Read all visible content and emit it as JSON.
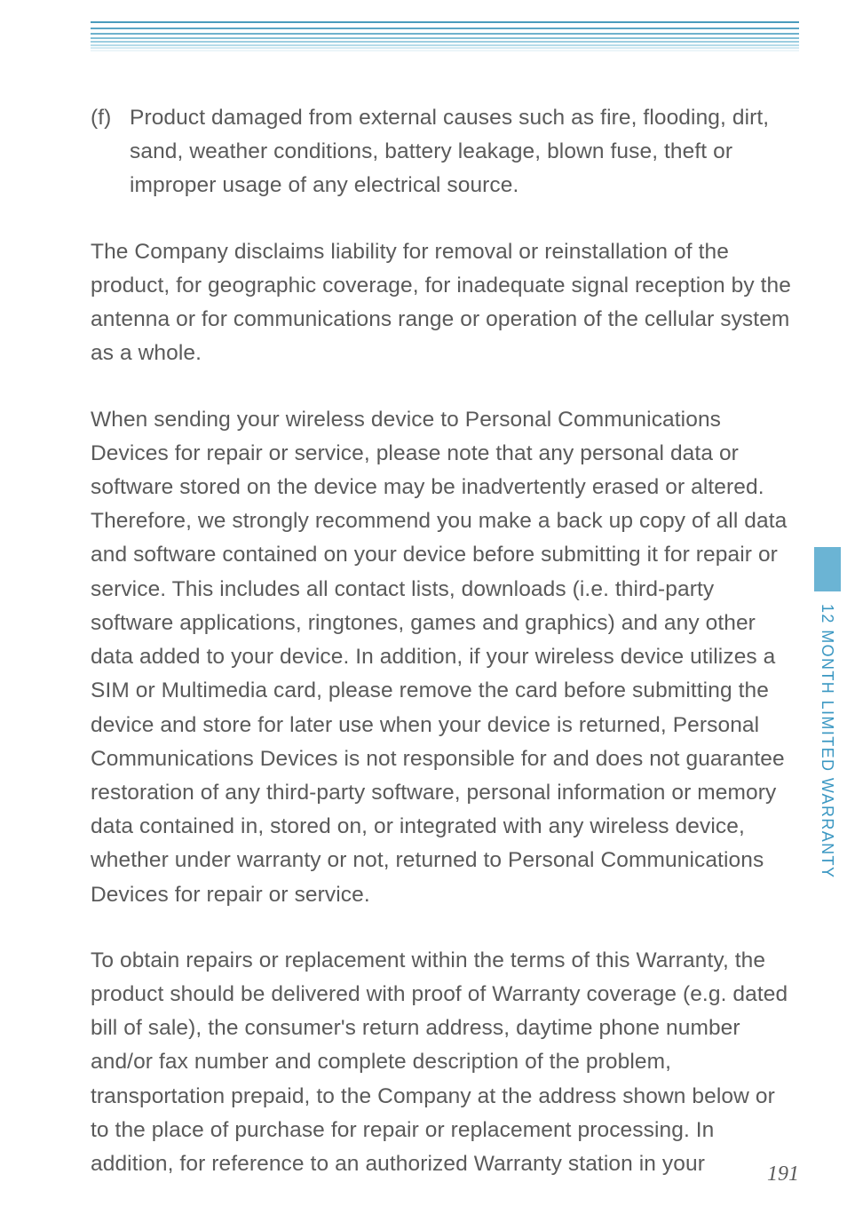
{
  "header_rules": [
    {
      "color": "#4a9bbd",
      "gap": 5
    },
    {
      "color": "#5aa5c5",
      "gap": 4
    },
    {
      "color": "#6eb1cd",
      "gap": 3
    },
    {
      "color": "#84bfd6",
      "gap": 2
    },
    {
      "color": "#9ccde0",
      "gap": 2
    },
    {
      "color": "#b6dbe9",
      "gap": 1
    },
    {
      "color": "#d2e9f2",
      "gap": 1
    },
    {
      "color": "#ecf5f9",
      "gap": 0
    }
  ],
  "list_item": {
    "marker": "(f)",
    "text": "Product damaged from external causes such as fire, flooding, dirt, sand, weather conditions, battery leakage, blown fuse, theft or improper usage of any electrical source."
  },
  "paragraphs": [
    "The Company disclaims liability for removal or reinstallation of the product, for geographic coverage, for inadequate signal reception by the antenna or for communications range or operation of the cellular system as a whole.",
    "When sending your wireless device to Personal Communications Devices for repair or service, please note that any personal data or software stored on the device may be inadvertently erased or altered. Therefore, we strongly recommend you make a back up copy of all data and software contained on your device before submitting it for repair or service.  This includes all contact lists, downloads (i.e. third-party software applications, ringtones, games and graphics) and any other data added to your device.  In addition, if your wireless device utilizes a SIM or Multimedia card, please remove the card before submitting the device and store for later use when your device is returned, Personal Communications Devices is not responsible for and does not guarantee restoration of any third-party software, personal information or memory data contained in, stored on, or integrated with any wireless device, whether under warranty or not, returned to Personal Communications Devices for repair or service.",
    "To obtain repairs or replacement within the terms of this Warranty, the product should be delivered with proof of Warranty coverage (e.g. dated bill of sale), the consumer's return address, daytime phone number and/or fax number and complete description of the problem, transportation prepaid, to the Company at the address shown below or to the place of purchase for repair or replacement processing. In addition, for reference to an authorized Warranty station in your"
  ],
  "side_tab": {
    "label": "12 MONTH LIMITED WARRANTY",
    "bar_color": "#6bb4d4",
    "label_color": "#3a97c2"
  },
  "page_number": "191",
  "colors": {
    "body_text": "#5a5a5a",
    "background": "#ffffff"
  }
}
